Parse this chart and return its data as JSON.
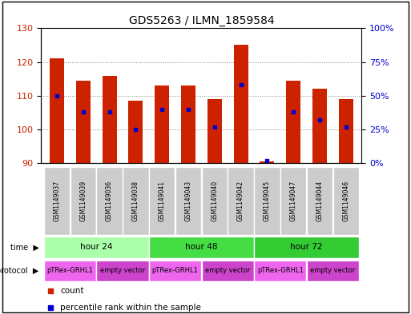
{
  "title": "GDS5263 / ILMN_1859584",
  "samples": [
    "GSM1149037",
    "GSM1149039",
    "GSM1149036",
    "GSM1149038",
    "GSM1149041",
    "GSM1149043",
    "GSM1149040",
    "GSM1149042",
    "GSM1149045",
    "GSM1149047",
    "GSM1149044",
    "GSM1149046"
  ],
  "count_values": [
    121.0,
    114.5,
    116.0,
    108.5,
    113.0,
    113.0,
    109.0,
    125.0,
    90.5,
    114.5,
    112.0,
    109.0
  ],
  "percentile_values": [
    50,
    38,
    38,
    25,
    40,
    40,
    27,
    58,
    2,
    38,
    32,
    27
  ],
  "y_min": 90,
  "y_max": 130,
  "y_ticks": [
    90,
    100,
    110,
    120,
    130
  ],
  "right_y_ticks": [
    0,
    25,
    50,
    75,
    100
  ],
  "right_y_labels": [
    "0%",
    "25%",
    "50%",
    "75%",
    "100%"
  ],
  "bar_color": "#cc2200",
  "marker_color": "#0000cc",
  "time_groups": [
    {
      "label": "hour 24",
      "start": 0,
      "end": 4,
      "color": "#aaffaa"
    },
    {
      "label": "hour 48",
      "start": 4,
      "end": 8,
      "color": "#44dd44"
    },
    {
      "label": "hour 72",
      "start": 8,
      "end": 12,
      "color": "#33cc33"
    }
  ],
  "protocol_groups": [
    {
      "label": "pTRex-GRHL1",
      "start": 0,
      "end": 2,
      "color": "#ee66ee"
    },
    {
      "label": "empty vector",
      "start": 2,
      "end": 4,
      "color": "#cc44cc"
    },
    {
      "label": "pTRex-GRHL1",
      "start": 4,
      "end": 6,
      "color": "#ee66ee"
    },
    {
      "label": "empty vector",
      "start": 6,
      "end": 8,
      "color": "#cc44cc"
    },
    {
      "label": "pTRex-GRHL1",
      "start": 8,
      "end": 10,
      "color": "#ee66ee"
    },
    {
      "label": "empty vector",
      "start": 10,
      "end": 12,
      "color": "#cc44cc"
    }
  ],
  "sample_box_color": "#cccccc",
  "legend_count_color": "#cc2200",
  "legend_marker_color": "#0000cc",
  "fig_width": 5.13,
  "fig_height": 3.93,
  "dpi": 100
}
